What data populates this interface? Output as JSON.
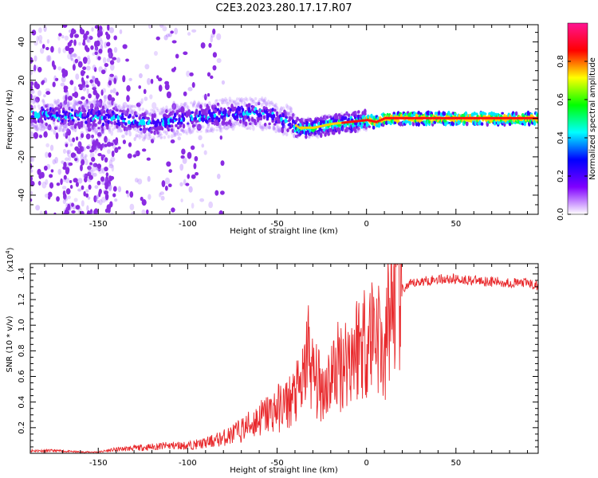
{
  "title": "C2E3.2023.280.17.17.R07",
  "chart_data": [
    {
      "type": "heatmap",
      "xlabel": "Height of straight line (km)",
      "ylabel": "Frequency (Hz)",
      "xlim": [
        -188,
        96
      ],
      "ylim": [
        -50,
        49
      ],
      "xticks": [
        -150,
        -100,
        -50,
        0,
        50
      ],
      "yticks": [
        -40,
        -20,
        0,
        20,
        40
      ],
      "colorbar": {
        "label": "Normalized spectral amplitude",
        "range": [
          0,
          1
        ],
        "ticks": [
          "0.0",
          "0.2",
          "0.4",
          "0.6",
          "0.8"
        ],
        "tick_values": [
          0,
          0.2,
          0.4,
          0.6,
          0.8
        ],
        "colors": [
          "#ffffff",
          "#8000ff",
          "#0000ff",
          "#00ffff",
          "#00ff00",
          "#ffff00",
          "#ff0000",
          "#ff1493"
        ]
      },
      "ridge": {
        "x": [
          -188,
          -160,
          -140,
          -120,
          -100,
          -80,
          -60,
          -45,
          -38,
          -30,
          -20,
          -10,
          0,
          5,
          10,
          20,
          40,
          60,
          96
        ],
        "center_hz": [
          2,
          1,
          0,
          -3,
          0,
          2,
          3,
          -1,
          -5,
          -5,
          -3,
          -2,
          -1,
          -2,
          0,
          0,
          0,
          0,
          0
        ]
      }
    },
    {
      "type": "line",
      "xlabel": "Height of straight line (km)",
      "ylabel": "SNR (10 * v/v)",
      "y_scale_note": "(x10",
      "y_scale_exp": "4",
      "y_scale_close": ")",
      "xlim": [
        -188,
        96
      ],
      "ylim": [
        0,
        1.48
      ],
      "xticks": [
        -150,
        -100,
        -50,
        0,
        50
      ],
      "yticks": [
        0.2,
        0.4,
        0.6,
        0.8,
        1.0,
        1.2,
        1.4
      ],
      "ytick_labels": [
        "0.2",
        "0.4",
        "0.6",
        "0.8",
        "1.0",
        "1.2",
        "1.4"
      ],
      "color": "#e8282b",
      "series": [
        {
          "x": [
            -188,
            -175,
            -160,
            -150,
            -140,
            -130,
            -120,
            -110,
            -100,
            -90,
            -80,
            -70,
            -60,
            -50,
            -45,
            -40,
            -35,
            -33,
            -30,
            -25,
            -20,
            -15,
            -10,
            -5,
            0,
            5,
            8,
            10,
            12,
            15,
            20,
            25,
            30,
            40,
            50,
            60,
            70,
            80,
            90,
            96
          ],
          "values": [
            0.02,
            0.02,
            0.01,
            0.01,
            0.03,
            0.04,
            0.05,
            0.06,
            0.06,
            0.08,
            0.12,
            0.18,
            0.27,
            0.35,
            0.38,
            0.45,
            0.55,
            0.85,
            0.6,
            0.5,
            0.6,
            0.7,
            0.75,
            0.85,
            0.9,
            1.0,
            0.9,
            0.6,
            1.1,
            1.2,
            1.28,
            1.32,
            1.34,
            1.36,
            1.36,
            1.35,
            1.34,
            1.33,
            1.33,
            1.3
          ]
        }
      ]
    }
  ]
}
